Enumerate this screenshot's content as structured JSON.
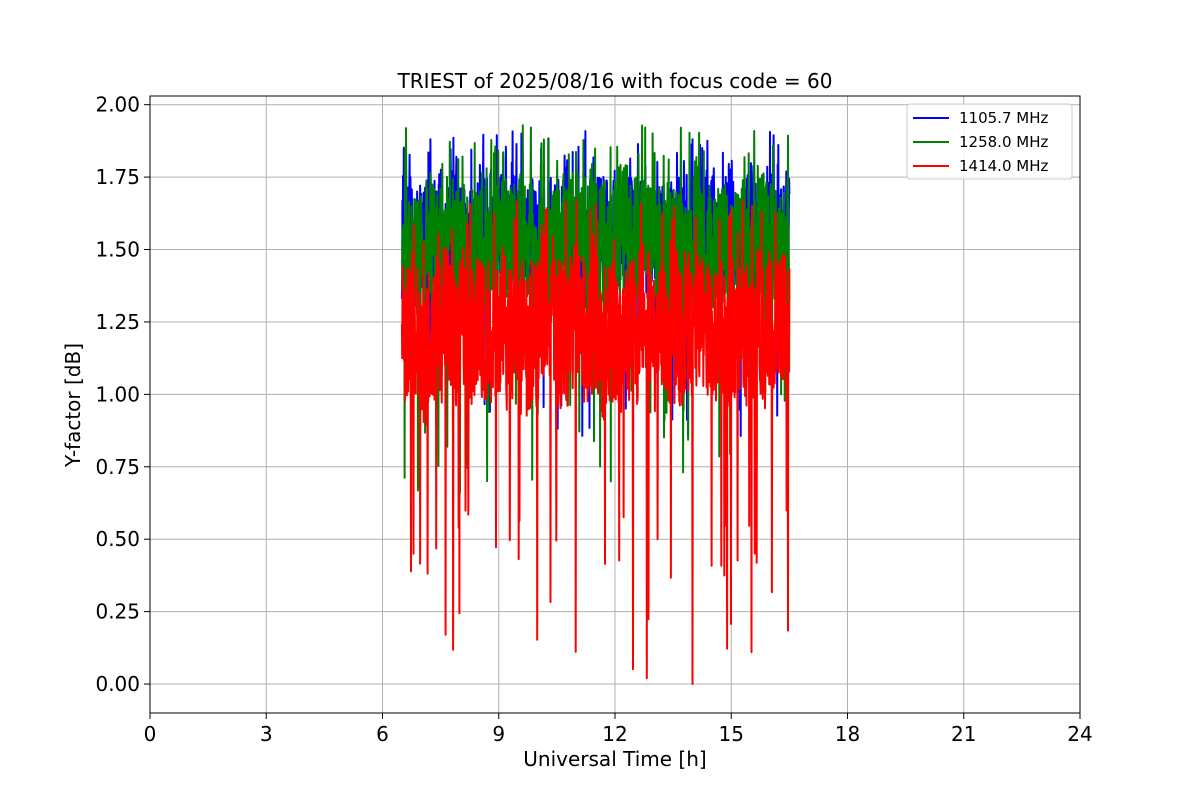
{
  "chart_data": {
    "type": "line",
    "title": "TRIEST of 2025/08/16 with focus code = 60",
    "xlabel": "Universal Time [h]",
    "ylabel": "Y-factor [dB]",
    "xlim": [
      0,
      24
    ],
    "ylim": [
      -0.1,
      2.03
    ],
    "xticks": [
      0,
      3,
      6,
      9,
      12,
      15,
      18,
      21,
      24
    ],
    "yticks": [
      0.0,
      0.25,
      0.5,
      0.75,
      1.0,
      1.25,
      1.5,
      1.75,
      2.0
    ],
    "xtick_labels": [
      "0",
      "3",
      "6",
      "9",
      "12",
      "15",
      "18",
      "21",
      "24"
    ],
    "ytick_labels": [
      "0.00",
      "0.25",
      "0.50",
      "0.75",
      "1.00",
      "1.25",
      "1.50",
      "1.75",
      "2.00"
    ],
    "grid": true,
    "legend_position": "top-right",
    "series": [
      {
        "name": "1105.7 MHz",
        "color": "#0000ff",
        "x_start": 6.5,
        "x_end": 16.5,
        "baseline": 1.55,
        "low": 0.85,
        "high": 1.91
      },
      {
        "name": "1258.0 MHz",
        "color": "#008000",
        "x_start": 6.5,
        "x_end": 16.5,
        "baseline": 1.5,
        "low": 0.66,
        "high": 1.93
      },
      {
        "name": "1414.0 MHz",
        "color": "#ff0000",
        "x_start": 6.5,
        "x_end": 16.5,
        "baseline": 1.22,
        "low": 0.0,
        "high": 1.68
      }
    ]
  }
}
